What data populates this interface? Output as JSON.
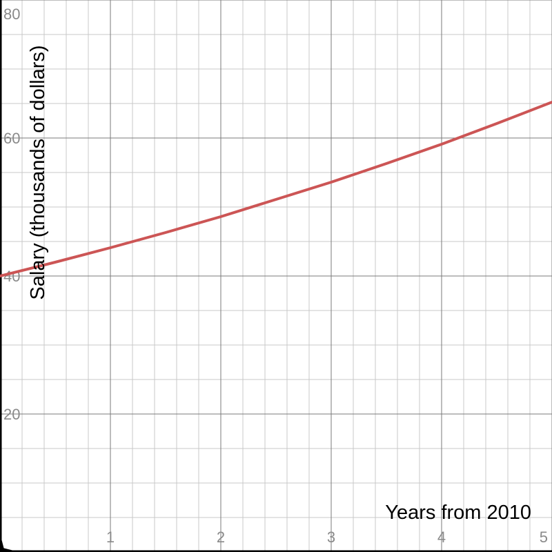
{
  "chart_data": {
    "type": "line",
    "title": "",
    "xlabel": "Years from 2010",
    "ylabel": "Salary (thousands of dollars)",
    "xlim": [
      0,
      5
    ],
    "ylim": [
      0,
      80
    ],
    "x_ticks": [
      1,
      2,
      3,
      4,
      5
    ],
    "y_ticks": [
      20,
      40,
      60,
      80
    ],
    "x_minor_step": 0.2,
    "y_minor_step": 5,
    "grid": true,
    "series": [
      {
        "color": "#cc5555",
        "x": [
          0,
          0.5,
          1,
          1.5,
          2,
          2.5,
          3,
          3.5,
          4,
          4.5,
          5
        ],
        "y": [
          40,
          42.0,
          44.1,
          46.3,
          48.6,
          51.1,
          53.6,
          56.3,
          59.1,
          62.1,
          65.2
        ]
      }
    ]
  }
}
